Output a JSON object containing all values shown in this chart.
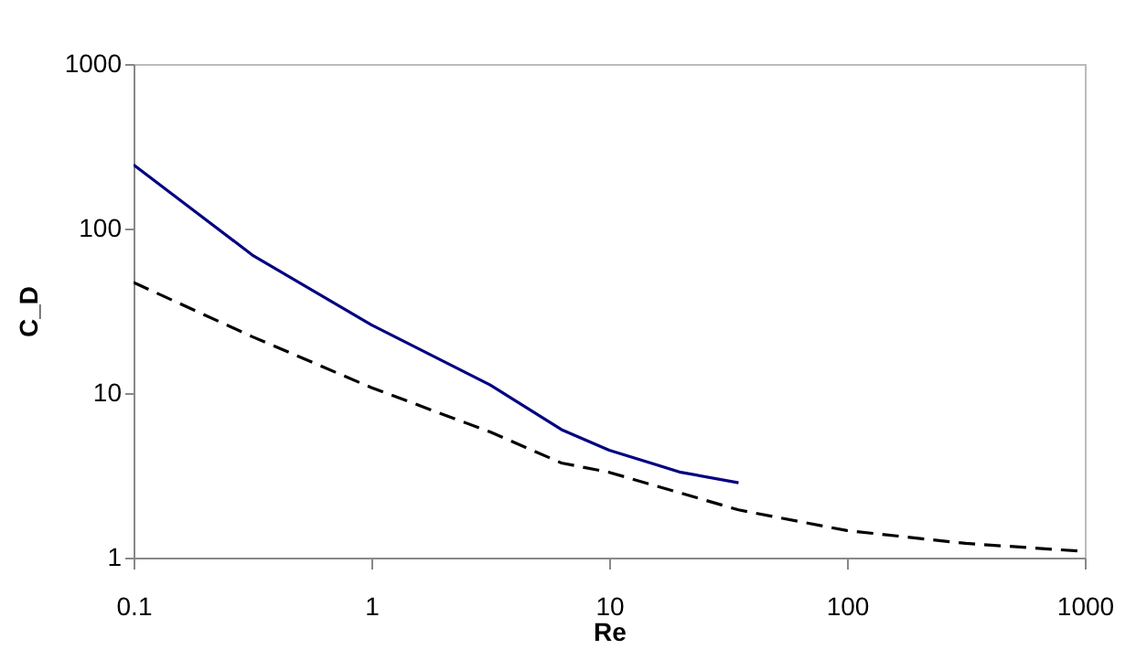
{
  "chart_data": {
    "type": "line",
    "xlabel": "Re",
    "ylabel": "C_D",
    "log": "xy",
    "xlim": [
      0.1,
      1000
    ],
    "xticks": [
      0.1,
      1,
      10,
      100,
      1000
    ],
    "ylim": [
      1,
      1000
    ],
    "yticks": [
      1,
      10,
      100,
      1000
    ],
    "grid": false,
    "series": [
      {
        "color": "#000080",
        "line_style": "solid",
        "x": [
          0.1,
          0.316,
          1,
          3.16,
          6.3,
          10,
          20,
          35
        ],
        "values": [
          244,
          69,
          26,
          11.2,
          6.0,
          4.5,
          3.3,
          2.85
        ]
      },
      {
        "color": "#000000",
        "line_style": "dashed",
        "x": [
          0.1,
          0.316,
          1,
          3.16,
          6.3,
          10,
          35,
          100,
          316,
          1000
        ],
        "values": [
          47,
          22,
          10.8,
          5.8,
          3.76,
          3.3,
          1.95,
          1.46,
          1.22,
          1.09
        ]
      }
    ]
  }
}
